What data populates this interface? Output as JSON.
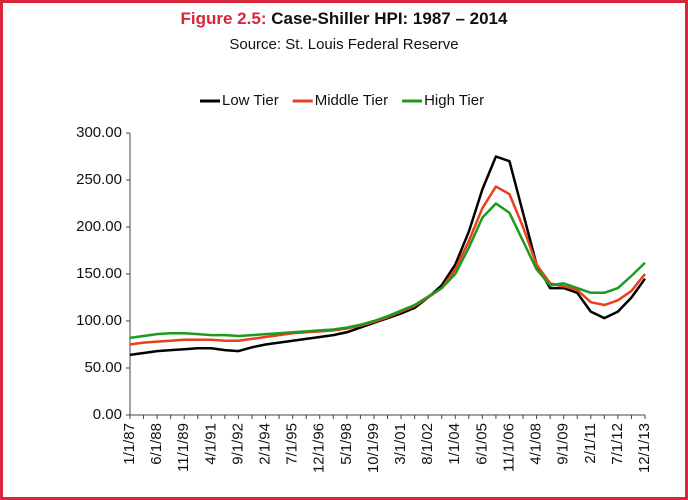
{
  "chart_data": {
    "type": "line",
    "title_prefix": "Figure 2.5:",
    "title": "Case-Shiller HPI: 1987 – 2014",
    "subtitle": "Source: St. Louis Federal Reserve",
    "categories": [
      "1/1/87",
      null,
      "6/1/88",
      null,
      "11/1/89",
      null,
      "4/1/91",
      null,
      "9/1/92",
      null,
      "2/1/94",
      null,
      "7/1/95",
      null,
      "12/1/96",
      null,
      "5/1/98",
      null,
      "10/1/99",
      null,
      "3/1/01",
      null,
      "8/1/02",
      null,
      "1/1/04",
      null,
      "6/1/05",
      null,
      "11/1/06",
      null,
      "4/1/08",
      null,
      "9/1/09",
      null,
      "2/1/11",
      null,
      "7/1/12",
      null,
      "12/1/13"
    ],
    "series": [
      {
        "name": "Low Tier",
        "color": "#000000",
        "values": [
          64,
          66,
          68,
          69,
          70,
          71,
          71,
          69,
          68,
          72,
          75,
          77,
          79,
          81,
          83,
          85,
          88,
          93,
          98,
          103,
          108,
          114,
          125,
          138,
          160,
          195,
          240,
          275,
          270,
          215,
          160,
          135,
          135,
          130,
          110,
          103,
          110,
          125,
          145
        ]
      },
      {
        "name": "Middle Tier",
        "color": "#e8401c",
        "values": [
          75,
          77,
          78,
          79,
          80,
          80,
          80,
          79,
          79,
          81,
          83,
          85,
          87,
          88,
          89,
          90,
          92,
          95,
          99,
          104,
          110,
          116,
          125,
          135,
          155,
          185,
          220,
          243,
          235,
          200,
          160,
          140,
          137,
          133,
          120,
          117,
          122,
          132,
          150
        ]
      },
      {
        "name": "High Tier",
        "color": "#1e9a1e",
        "values": [
          82,
          84,
          86,
          87,
          87,
          86,
          85,
          85,
          84,
          85,
          86,
          87,
          88,
          89,
          90,
          91,
          93,
          96,
          100,
          105,
          111,
          117,
          126,
          135,
          150,
          178,
          210,
          225,
          215,
          185,
          155,
          138,
          140,
          135,
          130,
          130,
          135,
          148,
          162
        ]
      }
    ],
    "ylim": [
      0,
      300
    ],
    "yticks": [
      {
        "value": 0,
        "label": "0.00"
      },
      {
        "value": 50,
        "label": "50.00"
      },
      {
        "value": 100,
        "label": "100.00"
      },
      {
        "value": 150,
        "label": "150.00"
      },
      {
        "value": 200,
        "label": "200.00"
      },
      {
        "value": 250,
        "label": "250.00"
      },
      {
        "value": 300,
        "label": "300.00"
      }
    ],
    "legend": "top"
  }
}
